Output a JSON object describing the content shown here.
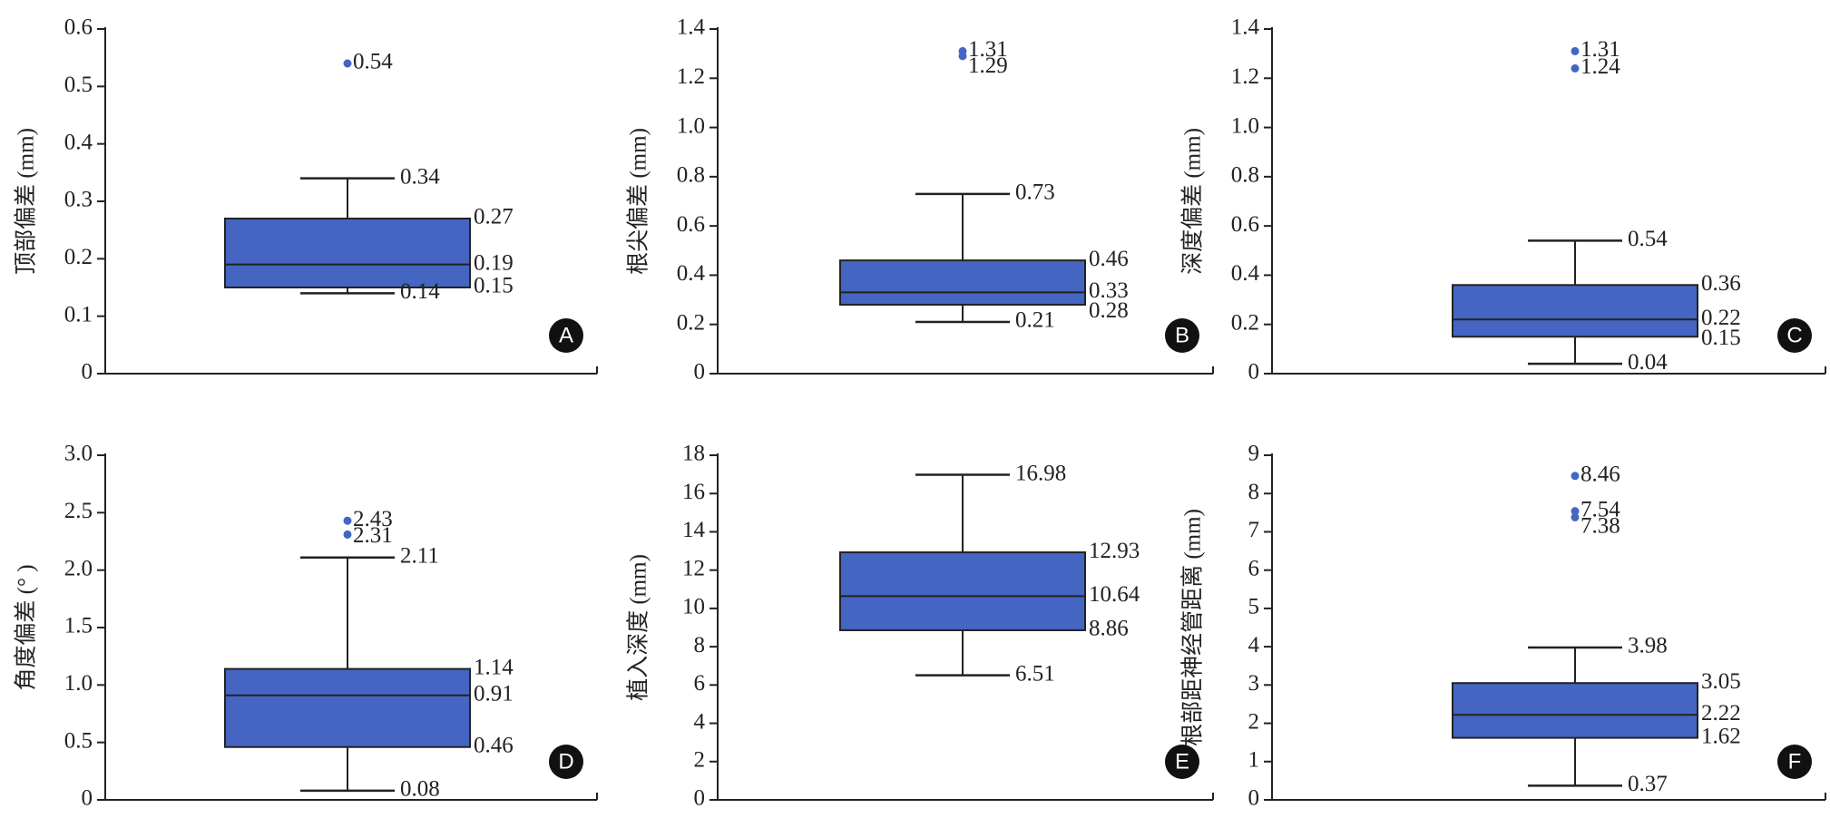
{
  "chart_data": [
    {
      "type": "box",
      "panel": "A",
      "ylabel": "顶部偏差 (mm)",
      "ylim": [
        0,
        0.6
      ],
      "yticks": [
        0,
        0.1,
        0.2,
        0.3,
        0.4,
        0.5,
        0.6
      ],
      "whisker_low": 0.14,
      "q1": 0.15,
      "median": 0.19,
      "q3": 0.27,
      "whisker_high": 0.34,
      "outliers": [
        0.54
      ],
      "color": "#4466c2"
    },
    {
      "type": "box",
      "panel": "B",
      "ylabel": "根尖偏差 (mm)",
      "ylim": [
        0,
        1.4
      ],
      "yticks": [
        0,
        0.2,
        0.4,
        0.6,
        0.8,
        {
          "value": 1,
          "label": "1.0"
        },
        1.2,
        1.4
      ],
      "whisker_low": 0.21,
      "q1": 0.28,
      "median": 0.33,
      "q3": 0.46,
      "whisker_high": 0.73,
      "outliers": [
        1.31,
        1.29
      ],
      "color": "#4466c2"
    },
    {
      "type": "box",
      "panel": "C",
      "ylabel": "深度偏差 (mm)",
      "ylim": [
        0,
        1.4
      ],
      "yticks": [
        0,
        0.2,
        0.4,
        0.6,
        0.8,
        {
          "value": 1,
          "label": "1.0"
        },
        1.2,
        1.4
      ],
      "whisker_low": 0.04,
      "q1": 0.15,
      "median": 0.22,
      "q3": 0.36,
      "whisker_high": 0.54,
      "outliers": [
        1.31,
        1.24
      ],
      "color": "#4466c2"
    },
    {
      "type": "box",
      "panel": "D",
      "ylabel": "角度偏差 (° )",
      "ylim": [
        0,
        3
      ],
      "yticks": [
        0,
        0.5,
        {
          "value": 1,
          "label": "1.0"
        },
        1.5,
        {
          "value": 2,
          "label": "2.0"
        },
        2.5,
        {
          "value": 3,
          "label": "3.0"
        }
      ],
      "whisker_low": 0.08,
      "q1": 0.46,
      "median": 0.91,
      "q3": 1.14,
      "whisker_high": 2.11,
      "outliers": [
        2.43,
        2.31
      ],
      "color": "#4466c2"
    },
    {
      "type": "box",
      "panel": "E",
      "ylabel": "植入深度 (mm)",
      "ylim": [
        0,
        18
      ],
      "yticks": [
        0,
        2,
        4,
        6,
        8,
        10,
        12,
        14,
        16,
        18
      ],
      "whisker_low": 6.51,
      "q1": 8.86,
      "median": 10.64,
      "q3": 12.93,
      "whisker_high": 16.98,
      "outliers": [],
      "color": "#4466c2"
    },
    {
      "type": "box",
      "panel": "F",
      "ylabel": "根部距神经管距离 (mm)",
      "ylim": [
        0,
        9
      ],
      "yticks": [
        0,
        1,
        2,
        3,
        4,
        5,
        6,
        7,
        8,
        9
      ],
      "whisker_low": 0.37,
      "q1": 1.62,
      "median": 2.22,
      "q3": 3.05,
      "whisker_high": 3.98,
      "outliers": [
        8.46,
        7.54,
        7.38
      ],
      "color": "#4466c2"
    }
  ]
}
